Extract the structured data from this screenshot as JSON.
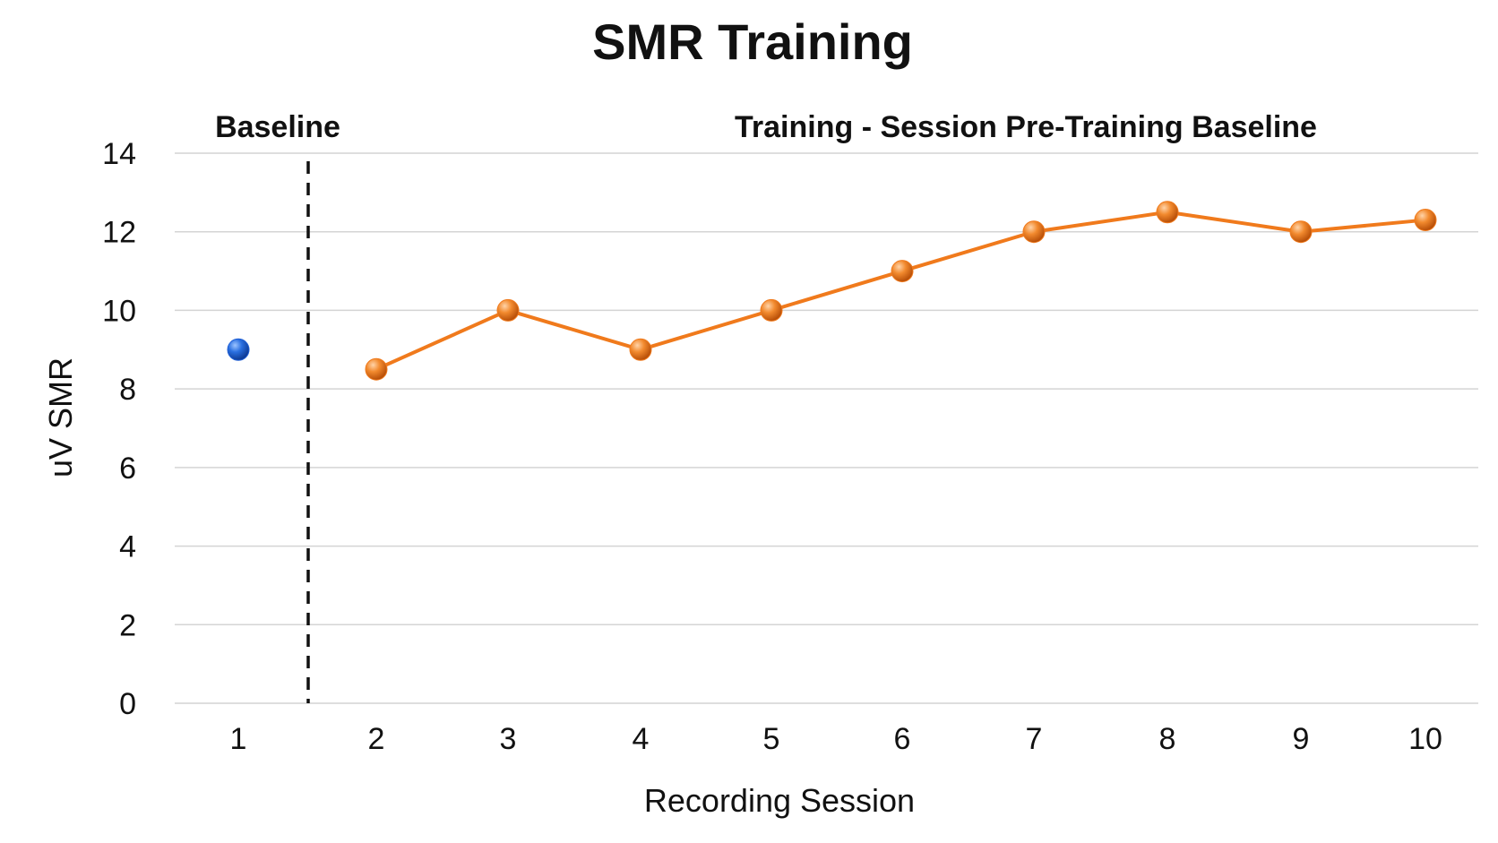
{
  "chart_data": {
    "type": "line",
    "title": "SMR Training",
    "xlabel": "Recording Session",
    "ylabel": "uV SMR",
    "ylim": [
      0,
      14
    ],
    "yticks": [
      "0",
      "2",
      "4",
      "6",
      "8",
      "10",
      "12",
      "14"
    ],
    "categories": [
      "1",
      "2",
      "3",
      "4",
      "5",
      "6",
      "7",
      "8",
      "9",
      "10"
    ],
    "grid": true,
    "regions": [
      {
        "label": "Baseline",
        "sessions": [
          "1"
        ]
      },
      {
        "label": "Training - Session Pre-Training Baseline",
        "sessions": [
          "2",
          "3",
          "4",
          "5",
          "6",
          "7",
          "8",
          "9",
          "10"
        ]
      }
    ],
    "series": [
      {
        "x": [
          "1"
        ],
        "values": [
          9.0
        ],
        "color": "#1f5fd6",
        "connected": false
      },
      {
        "x": [
          "2",
          "3",
          "4",
          "5",
          "6",
          "7",
          "8",
          "9",
          "10"
        ],
        "values": [
          8.5,
          10.0,
          9.0,
          10.0,
          11.0,
          12.0,
          12.5,
          12.0,
          12.3
        ],
        "color": "#f07a1c",
        "connected": true
      }
    ]
  }
}
